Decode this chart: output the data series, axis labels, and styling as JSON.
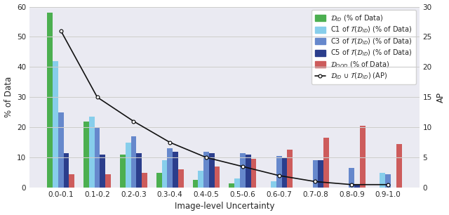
{
  "categories": [
    "0.0-0.1",
    "0.1-0.2",
    "0.2-0.3",
    "0.3-0.4",
    "0.4-0.5",
    "0.5-0.6",
    "0.6-0.7",
    "0.7-0.8",
    "0.8-0.9",
    "0.9-1.0"
  ],
  "D_ID": [
    58,
    22,
    11,
    5,
    2.5,
    1.5,
    0,
    0,
    0,
    0
  ],
  "C1": [
    42,
    23.5,
    15,
    9,
    5.5,
    3,
    2,
    0,
    0,
    5
  ],
  "C3": [
    25,
    20,
    17,
    13,
    12,
    11.5,
    10.5,
    9,
    6.5,
    4.5
  ],
  "C5": [
    11.5,
    11,
    11.5,
    12,
    11.5,
    11,
    10,
    9,
    1,
    0
  ],
  "D_OOD": [
    4.5,
    4.5,
    5,
    6,
    7,
    9.5,
    12.5,
    16.5,
    20.5,
    14.5
  ],
  "AP": [
    26,
    15,
    11,
    7.5,
    5,
    3.5,
    2,
    1,
    0.5,
    0.5
  ],
  "bar_colors": {
    "D_ID": "#4caf50",
    "C1": "#87ceeb",
    "C3": "#6688cc",
    "C5": "#2b3e8c",
    "D_OOD": "#cd5c5c"
  },
  "line_color": "#111111",
  "bg_color": "#eaeaf2",
  "ylim_left": [
    0,
    60
  ],
  "ylim_right": [
    0,
    30
  ],
  "yticks_left": [
    0,
    10,
    20,
    30,
    40,
    50,
    60
  ],
  "yticks_right": [
    0,
    5,
    10,
    15,
    20,
    25,
    30
  ],
  "ylabel_left": "% of Data",
  "ylabel_right": "AP",
  "xlabel": "Image-level Uncertainty",
  "legend_labels": [
    "$\\mathcal{D}_{ID}$ (% of Data)",
    "C1 of $\\mathcal{T}(\\mathcal{D}_{ID})$ (% of Data)",
    "C3 of $\\mathcal{T}(\\mathcal{D}_{ID})$ (% of Data)",
    "C5 of $\\mathcal{T}(\\mathcal{D}_{ID})$ (% of Data)",
    "$\\mathcal{D}_{OOD}$ (% of Data)",
    "$\\mathcal{D}_{ID}$ ∪ $\\mathcal{T}(\\mathcal{D}_{ID})$ (AP)"
  ]
}
